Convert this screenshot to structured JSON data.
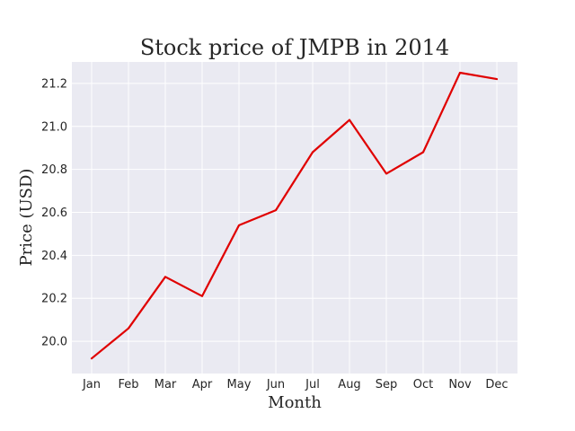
{
  "chart_data": {
    "type": "line",
    "title": "Stock price of JMPB in 2014",
    "xlabel": "Month",
    "ylabel": "Price (USD)",
    "categories": [
      "Jan",
      "Feb",
      "Mar",
      "Apr",
      "May",
      "Jun",
      "Jul",
      "Aug",
      "Sep",
      "Oct",
      "Nov",
      "Dec"
    ],
    "series": [
      {
        "values": [
          19.92,
          20.06,
          20.3,
          20.21,
          20.54,
          20.61,
          20.88,
          21.03,
          20.78,
          20.88,
          21.25,
          21.22
        ],
        "color": "#e00000"
      }
    ],
    "ylim": [
      19.85,
      21.3
    ],
    "yticks": [
      "20.0",
      "20.2",
      "20.4",
      "20.6",
      "20.8",
      "21.0",
      "21.2"
    ],
    "grid": true,
    "background_color": "#eaeaf2",
    "grid_color": "#ffffff"
  }
}
